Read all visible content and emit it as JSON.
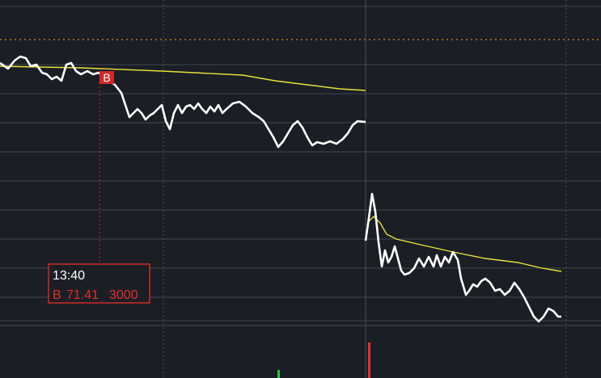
{
  "trade_marker": {
    "label": "B"
  },
  "tooltip": {
    "time": "13:40",
    "side": "B",
    "price": 71.41,
    "volume": 3000
  }
}
